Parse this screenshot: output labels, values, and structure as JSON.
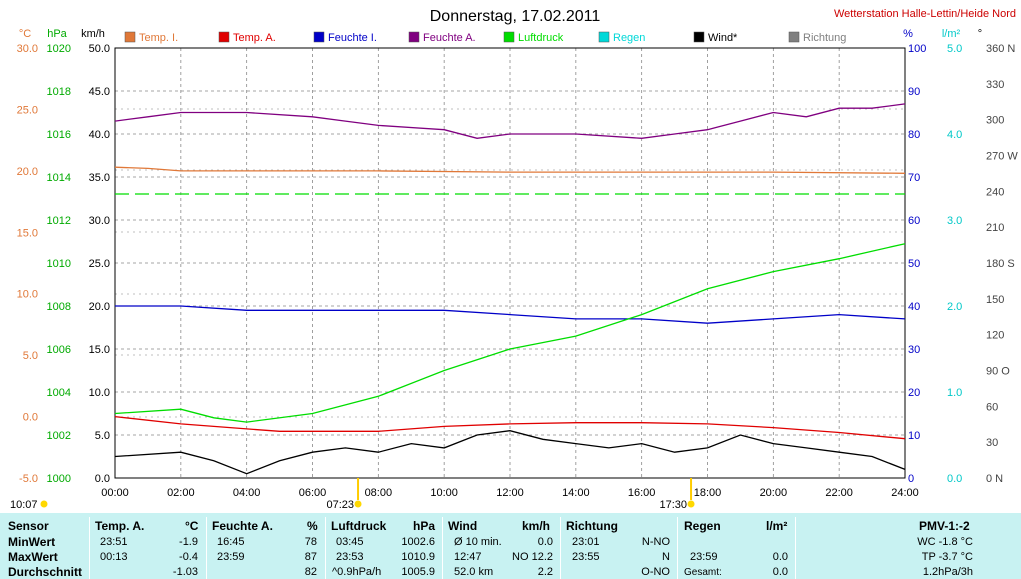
{
  "title": "Donnerstag, 17.02.2011",
  "station": "Wetterstation Halle-Lettin/Heide Nord",
  "units": {
    "temp": "°C",
    "press": "hPa",
    "wind": "km/h",
    "hum": "%",
    "rain": "l/m²",
    "dir": "°"
  },
  "legend": [
    {
      "label": "Temp. I.",
      "color": "#e07838"
    },
    {
      "label": "Temp. A.",
      "color": "#e00000"
    },
    {
      "label": "Feuchte I.",
      "color": "#0000c8"
    },
    {
      "label": "Feuchte A.",
      "color": "#800080"
    },
    {
      "label": "Luftdruck",
      "color": "#00dd00"
    },
    {
      "label": "Regen",
      "color": "#00d8d8"
    },
    {
      "label": "Wind*",
      "color": "#000000"
    },
    {
      "label": "Richtung",
      "color": "#808080"
    }
  ],
  "axes": {
    "temp": [
      "30.0",
      "25.0",
      "20.0",
      "15.0",
      "10.0",
      "5.0",
      "0.0",
      "-5.0"
    ],
    "press": [
      "1020",
      "1018",
      "1016",
      "1014",
      "1012",
      "1010",
      "1008",
      "1006",
      "1004",
      "1002",
      "1000"
    ],
    "wind": [
      "50.0",
      "45.0",
      "40.0",
      "35.0",
      "30.0",
      "25.0",
      "20.0",
      "15.0",
      "10.0",
      "5.0",
      "0.0"
    ],
    "hum": [
      "100",
      "90",
      "80",
      "70",
      "60",
      "50",
      "40",
      "30",
      "20",
      "10",
      "0"
    ],
    "rain": [
      "5.0",
      "4.0",
      "3.0",
      "2.0",
      "1.0",
      "0.0"
    ],
    "dir": [
      "360 N",
      "330",
      "300",
      "270 W",
      "240",
      "210",
      "180 S",
      "150",
      "120",
      "90 O",
      "60",
      "30",
      "0 N"
    ],
    "time": [
      "00:00",
      "02:00",
      "04:00",
      "06:00",
      "08:00",
      "10:00",
      "12:00",
      "14:00",
      "16:00",
      "18:00",
      "20:00",
      "22:00",
      "24:00"
    ]
  },
  "sun": {
    "first": "10:07",
    "rise": "07:23",
    "set": "17:30"
  },
  "chart_data": {
    "type": "line",
    "x_unit": "hour of day",
    "xlim": [
      0,
      24
    ],
    "series": [
      {
        "name": "Temp. A.",
        "axis": "°C",
        "x": [
          0,
          2,
          4,
          5,
          6,
          8,
          10,
          12,
          14,
          16,
          18,
          20,
          22,
          24
        ],
        "values": [
          0.0,
          -0.6,
          -1.0,
          -1.2,
          -1.2,
          -1.2,
          -0.8,
          -0.6,
          -0.5,
          -0.5,
          -0.6,
          -0.9,
          -1.3,
          -1.8
        ]
      },
      {
        "name": "Temp. I.",
        "axis": "°C",
        "x": [
          0,
          1,
          2,
          4,
          6,
          8,
          12,
          16,
          20,
          24
        ],
        "values": [
          20.3,
          20.2,
          20.0,
          20.0,
          20.0,
          20.0,
          19.9,
          19.9,
          19.9,
          19.8
        ]
      },
      {
        "name": "Feuchte A.",
        "axis": "%",
        "x": [
          0,
          1,
          2,
          4,
          6,
          7,
          8,
          10,
          11,
          12,
          14,
          16,
          17,
          18,
          19,
          20,
          21,
          22,
          23,
          24
        ],
        "values": [
          83,
          84,
          85,
          85,
          84,
          83,
          82,
          81,
          79,
          80,
          80,
          79,
          80,
          81,
          83,
          85,
          84,
          86,
          86,
          87
        ]
      },
      {
        "name": "Feuchte I.",
        "axis": "%",
        "x": [
          0,
          2,
          4,
          6,
          8,
          10,
          12,
          14,
          16,
          18,
          20,
          22,
          24
        ],
        "values": [
          40,
          40,
          39,
          39,
          39,
          39,
          38,
          37,
          37,
          36,
          37,
          38,
          37
        ]
      },
      {
        "name": "Luftdruck",
        "axis": "hPa",
        "x": [
          0,
          2,
          3,
          4,
          6,
          8,
          10,
          12,
          14,
          16,
          18,
          20,
          22,
          24
        ],
        "values": [
          1003.0,
          1003.2,
          1002.8,
          1002.6,
          1003.0,
          1003.8,
          1005.0,
          1006.0,
          1006.6,
          1007.6,
          1008.8,
          1009.6,
          1010.2,
          1010.9
        ]
      },
      {
        "name": "Wind*",
        "axis": "km/h",
        "x": [
          0,
          2,
          3,
          4,
          5,
          6,
          7,
          8,
          9,
          10,
          11,
          12,
          13,
          14,
          15,
          16,
          17,
          18,
          19,
          20,
          21,
          22,
          23,
          24
        ],
        "values": [
          2.5,
          3.0,
          2.0,
          0.5,
          2.0,
          3.0,
          3.5,
          3.0,
          4.0,
          3.5,
          5.0,
          5.5,
          4.5,
          4.0,
          3.5,
          4.0,
          3.0,
          3.5,
          5.0,
          4.0,
          3.5,
          3.0,
          2.5,
          1.0
        ]
      }
    ]
  },
  "panel": {
    "headers": {
      "sensor": "Sensor",
      "temp": "Temp. A.",
      "temp_u": "°C",
      "hum": "Feuchte A.",
      "hum_u": "%",
      "press": "Luftdruck",
      "press_u": "hPa",
      "wind": "Wind",
      "wind_u": "km/h",
      "dir": "Richtung",
      "rain": "Regen",
      "rain_u": "l/m²",
      "pmv": "PMV-1:-2"
    },
    "rows": [
      {
        "label": "MinWert",
        "temp_t": "23:51",
        "temp_v": "-1.9",
        "hum_t": "16:45",
        "hum_v": "78",
        "press_t": "03:45",
        "press_v": "1002.6",
        "wind_t": "Ø 10 min.",
        "wind_v": "0.0",
        "dir_t": "23:01",
        "dir_v": "N-NO",
        "rain_t": "",
        "rain_v": "",
        "pmv": "WC -1.8 °C"
      },
      {
        "label": "MaxWert",
        "temp_t": "00:13",
        "temp_v": "-0.4",
        "hum_t": "23:59",
        "hum_v": "87",
        "press_t": "23:53",
        "press_v": "1010.9",
        "wind_t": "12:47",
        "wind_v": "NO 12.2",
        "dir_t": "23:55",
        "dir_v": "N",
        "rain_t": "23:59",
        "rain_v": "0.0",
        "pmv": "TP -3.7 °C"
      },
      {
        "label": "Durchschnitt",
        "temp_t": "",
        "temp_v": "-1.03",
        "hum_t": "",
        "hum_v": "82",
        "press_t": "^0.9hPa/h",
        "press_v": "1005.9",
        "wind_t": "52.0 km",
        "wind_v": "2.2",
        "dir_t": "",
        "dir_v": "O-NO",
        "rain_t": "Gesamt:",
        "rain_v": "0.0",
        "pmv": "1.2hPa/3h"
      }
    ]
  }
}
